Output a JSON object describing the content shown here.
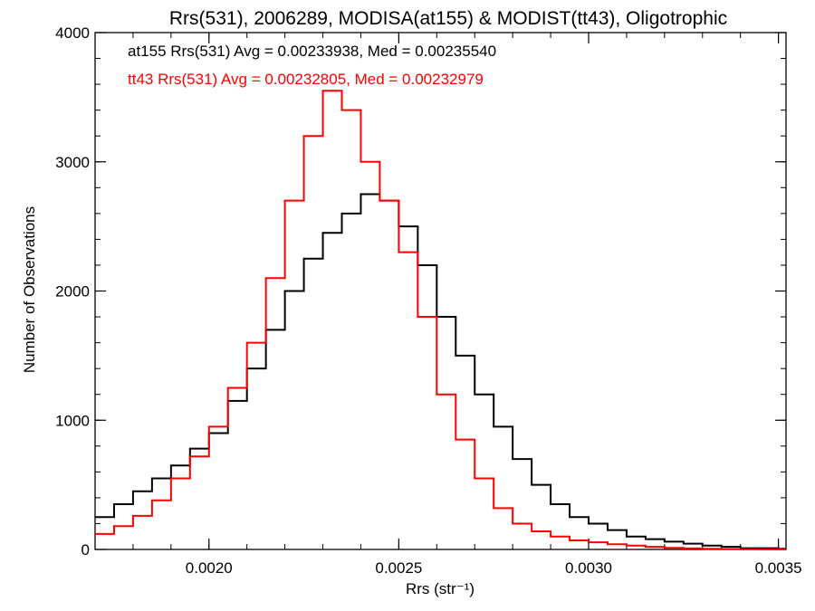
{
  "chart_data": {
    "type": "line",
    "title": "Rrs(531), 2006289, MODISA(at155) & MODIST(tt43), Oligotrophic",
    "xlabel": "Rrs (str⁻¹)",
    "ylabel": "Number of Observations",
    "xlim": [
      0.0017,
      0.00352
    ],
    "ylim": [
      0,
      4000
    ],
    "x_ticks": [
      0.002,
      0.0025,
      0.003,
      0.0035
    ],
    "x_tick_labels": [
      "0.0020",
      "0.0025",
      "0.0030",
      "0.0035"
    ],
    "y_ticks": [
      0,
      1000,
      2000,
      3000,
      4000
    ],
    "y_tick_labels": [
      "0",
      "1000",
      "2000",
      "3000",
      "4000"
    ],
    "grid": false,
    "legend_position": "top-left",
    "annotations": [
      {
        "text": "at155 Rrs(531) Avg = 0.00233938, Med = 0.00235540",
        "color": "#000000"
      },
      {
        "text": "tt43 Rrs(531) Avg = 0.00232805, Med = 0.00232979",
        "color": "#ff0000"
      }
    ],
    "series": [
      {
        "color": "#000000",
        "x": [
          0.0017,
          0.00175,
          0.0018,
          0.00185,
          0.0019,
          0.00195,
          0.002,
          0.00205,
          0.0021,
          0.00215,
          0.0022,
          0.00225,
          0.0023,
          0.00235,
          0.0024,
          0.00245,
          0.0025,
          0.00255,
          0.0026,
          0.00265,
          0.0027,
          0.00275,
          0.0028,
          0.00285,
          0.0029,
          0.00295,
          0.003,
          0.00305,
          0.0031,
          0.00315,
          0.0032,
          0.00325,
          0.0033,
          0.00335,
          0.0034,
          0.00345,
          0.0035
        ],
        "y": [
          250,
          350,
          450,
          550,
          650,
          780,
          900,
          1150,
          1400,
          1700,
          2000,
          2250,
          2450,
          2600,
          2750,
          2700,
          2500,
          2200,
          1800,
          1500,
          1200,
          950,
          700,
          500,
          350,
          250,
          200,
          150,
          100,
          80,
          60,
          45,
          30,
          20,
          10,
          10,
          5
        ]
      },
      {
        "color": "#ff0000",
        "x": [
          0.0017,
          0.00175,
          0.0018,
          0.00185,
          0.0019,
          0.00195,
          0.002,
          0.00205,
          0.0021,
          0.00215,
          0.0022,
          0.00225,
          0.0023,
          0.00235,
          0.0024,
          0.00245,
          0.0025,
          0.00255,
          0.0026,
          0.00265,
          0.0027,
          0.00275,
          0.0028,
          0.00285,
          0.0029,
          0.00295,
          0.003,
          0.00305,
          0.0031,
          0.00315,
          0.0032,
          0.00325,
          0.0033,
          0.00335,
          0.0034,
          0.00345,
          0.0035
        ],
        "y": [
          120,
          180,
          260,
          380,
          550,
          720,
          950,
          1250,
          1600,
          2100,
          2700,
          3200,
          3550,
          3400,
          3000,
          2700,
          2300,
          1800,
          1200,
          850,
          550,
          320,
          200,
          140,
          100,
          70,
          55,
          40,
          30,
          20,
          12,
          8,
          5,
          3,
          2,
          1,
          1
        ]
      }
    ]
  }
}
